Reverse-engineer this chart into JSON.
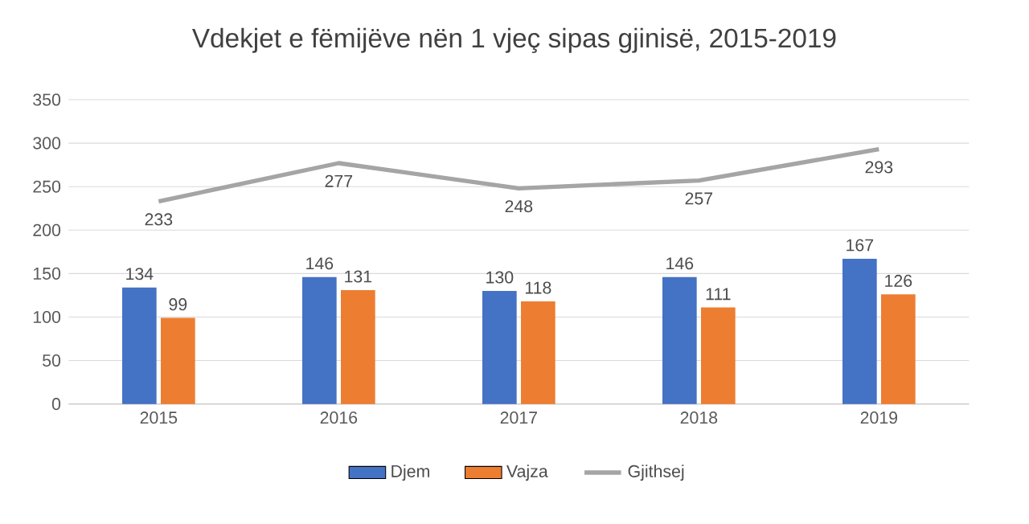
{
  "chart_data": {
    "type": "bar",
    "title": "Vdekjet e fëmijëve nën 1 vjeç sipas gjinisë, 2015-2019",
    "categories": [
      "2015",
      "2016",
      "2017",
      "2018",
      "2019"
    ],
    "series": [
      {
        "name": "Djem",
        "color": "#4472c4",
        "values": [
          134,
          146,
          130,
          146,
          167
        ]
      },
      {
        "name": "Vajza",
        "color": "#ed7d31",
        "values": [
          99,
          131,
          118,
          111,
          126
        ]
      },
      {
        "name": "Gjithsej",
        "type": "line",
        "color": "#a5a5a5",
        "values": [
          233,
          277,
          248,
          257,
          293
        ]
      }
    ],
    "ylim": [
      0,
      350
    ],
    "yticks": [
      0,
      50,
      100,
      150,
      200,
      250,
      300,
      350
    ],
    "grid": "y",
    "legend": "bottom",
    "data_labels": true
  }
}
